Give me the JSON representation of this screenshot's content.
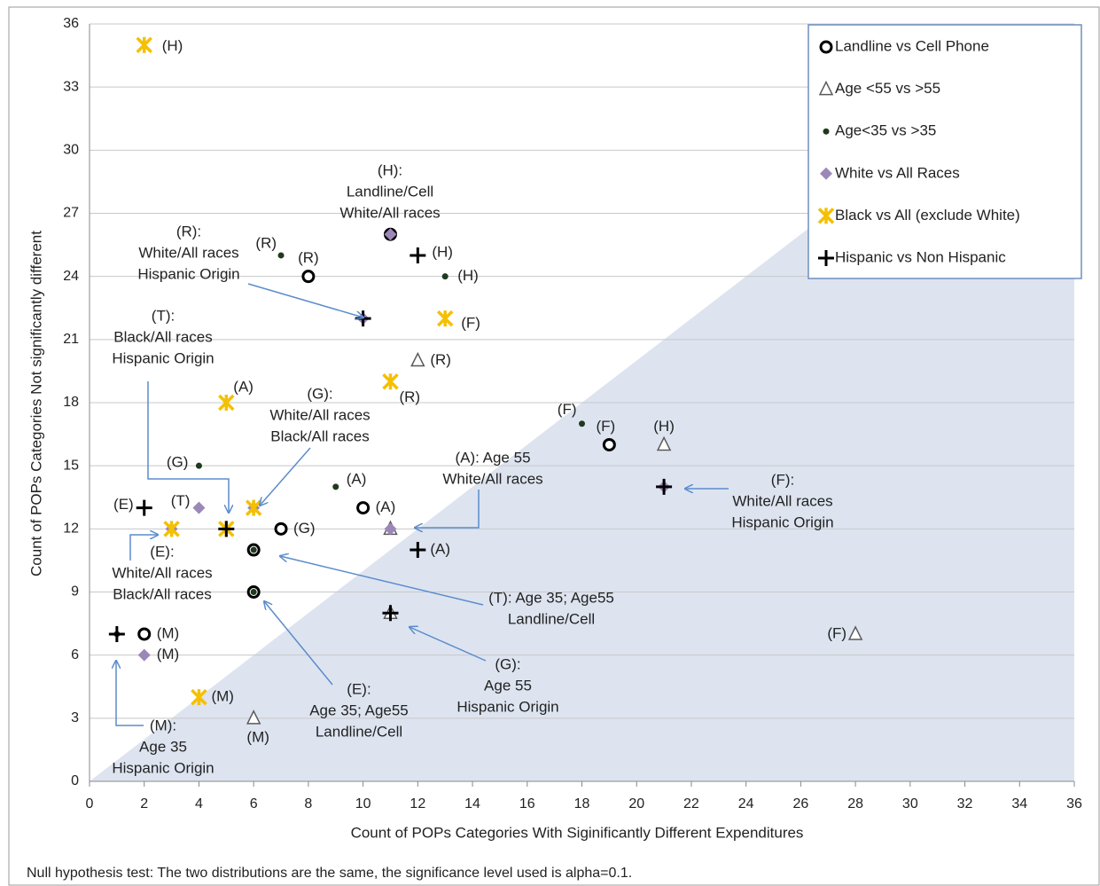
{
  "chart_data": {
    "type": "scatter",
    "x_label": "Count of POPs Categories  With Siginificantly Different Expenditures",
    "y_label": "Count of POPs Categories Not significantly different",
    "footnote": "Null hypothesis test: The two distributions are the same, the significance level used is alpha=0.1.",
    "xlim": [
      0,
      36
    ],
    "ylim": [
      0,
      36
    ],
    "xticks": [
      0,
      2,
      4,
      6,
      8,
      10,
      12,
      14,
      16,
      18,
      20,
      22,
      24,
      26,
      28,
      30,
      32,
      34,
      36
    ],
    "yticks": [
      0,
      3,
      6,
      9,
      12,
      15,
      18,
      21,
      24,
      27,
      30,
      33,
      36
    ],
    "grid": true,
    "legend": "upper right",
    "series": [
      {
        "name": "Landline vs Cell Phone",
        "marker": "circle",
        "color": "#000000",
        "x": [
          8,
          11,
          10,
          7,
          6,
          6,
          2,
          19
        ],
        "values": [
          24,
          26,
          13,
          12,
          11,
          9,
          7,
          16
        ],
        "labels": [
          "(R)",
          null,
          "(A)",
          "(G)",
          null,
          null,
          "(M)",
          "(F)"
        ]
      },
      {
        "name": "Age <55 vs >55",
        "marker": "triangle",
        "color": "#595959",
        "x": [
          12,
          21,
          11,
          11,
          6,
          28
        ],
        "values": [
          20,
          16,
          12,
          8,
          3,
          7
        ],
        "labels": [
          "(R)",
          "(H)",
          null,
          null,
          "(M)",
          "(F)"
        ]
      },
      {
        "name": "Age<35 vs >35",
        "marker": "dot",
        "color": "#1f3a1f",
        "x": [
          7,
          13,
          18,
          4,
          9,
          6,
          6,
          1
        ],
        "values": [
          25,
          24,
          17,
          15,
          14,
          11,
          9,
          7
        ],
        "labels": [
          "(R)",
          "(H)",
          "(F)",
          "(G)",
          "(A)",
          null,
          null,
          null
        ]
      },
      {
        "name": "White vs All Races",
        "marker": "diamond",
        "color": "#9b88b8",
        "x": [
          11,
          10,
          4,
          6,
          11,
          21,
          3,
          2
        ],
        "values": [
          26,
          22,
          13,
          13,
          12,
          14,
          12,
          6
        ],
        "labels": [
          null,
          null,
          "(T)",
          null,
          null,
          null,
          null,
          "(M)"
        ]
      },
      {
        "name": "Black vs All (exclude White)",
        "marker": "star",
        "color": "#f5c000",
        "x": [
          2,
          13,
          11,
          5,
          6,
          3,
          5,
          4
        ],
        "values": [
          35,
          22,
          19,
          18,
          13,
          12,
          12,
          4
        ],
        "labels": [
          "(H)",
          "(F)",
          "(R)",
          "(A)",
          null,
          null,
          null,
          "(M)"
        ]
      },
      {
        "name": "Hispanic vs Non Hispanic",
        "marker": "plus",
        "color": "#000000",
        "x": [
          12,
          10,
          21,
          2,
          5,
          12,
          11,
          1
        ],
        "values": [
          25,
          22,
          14,
          13,
          12,
          11,
          8,
          7
        ],
        "labels": [
          "(H)",
          null,
          null,
          "(E)",
          null,
          "(A)",
          null,
          null
        ]
      }
    ],
    "annotations": [
      {
        "lines": [
          "(H):",
          "Landline/Cell",
          "White/All races"
        ]
      },
      {
        "lines": [
          "(R):",
          "White/All races",
          "Hispanic Origin"
        ]
      },
      {
        "lines": [
          "(T):",
          "Black/All races",
          "Hispanic Origin"
        ]
      },
      {
        "lines": [
          "(G):",
          "White/All races",
          "Black/All races"
        ]
      },
      {
        "lines": [
          "(A): Age 55",
          "White/All races"
        ]
      },
      {
        "lines": [
          "(E):",
          "White/All races",
          "Black/All races"
        ]
      },
      {
        "lines": [
          "(T): Age 35; Age55",
          "Landline/Cell"
        ]
      },
      {
        "lines": [
          "(E):",
          "Age 35; Age55",
          "Landline/Cell"
        ]
      },
      {
        "lines": [
          "(G):",
          "Age 55",
          "Hispanic Origin"
        ]
      },
      {
        "lines": [
          "(M):",
          "Age 35",
          "Hispanic Origin"
        ]
      },
      {
        "lines": [
          "(F):",
          "White/All races",
          "Hispanic Origin"
        ]
      }
    ]
  }
}
